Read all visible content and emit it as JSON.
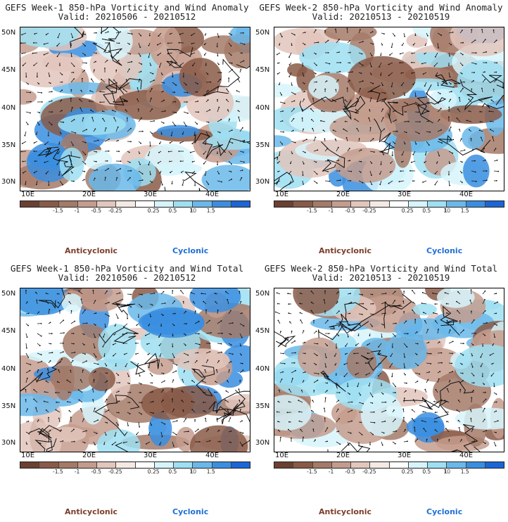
{
  "panels": [
    {
      "title1": "GEFS Week-1 850-hPa Vorticity and Wind Anomaly",
      "title2": "Valid: 20210506 - 20210512"
    },
    {
      "title1": "GEFS Week-2 850-hPa Vorticity and Wind Anomaly",
      "title2": "Valid: 20210513 - 20210519"
    },
    {
      "title1": "GEFS Week-1 850-hPa Vorticity and Wind Total",
      "title2": "Valid: 20210506 - 20210512"
    },
    {
      "title1": "GEFS Week-2 850-hPa Vorticity and Wind Total",
      "title2": "Valid: 20210513 - 20210519"
    }
  ],
  "axes": {
    "lat_labels": [
      "50N",
      "45N",
      "40N",
      "35N",
      "30N"
    ],
    "lon_labels": [
      "10E",
      "20E",
      "30E",
      "40E"
    ]
  },
  "colorbar": {
    "colors": [
      "#6b4031",
      "#8a5a48",
      "#a57a68",
      "#c49c8d",
      "#e2c6bc",
      "#f5e9e4",
      "#ffffff",
      "#d6f4fb",
      "#9fdff2",
      "#6ab8ea",
      "#3a8ee0",
      "#1a66d6"
    ],
    "ticks": [
      "-1.5",
      "-1",
      "-0.5",
      "-0.25",
      "0.25",
      "0.5",
      "1",
      "1.5"
    ],
    "scale_label": "10"
  },
  "legend": {
    "anticyclonic": "Anticyclonic",
    "cyclonic": "Cyclonic",
    "anticyclonic_color": "#7a3e2a",
    "cyclonic_color": "#1f6fd6"
  }
}
